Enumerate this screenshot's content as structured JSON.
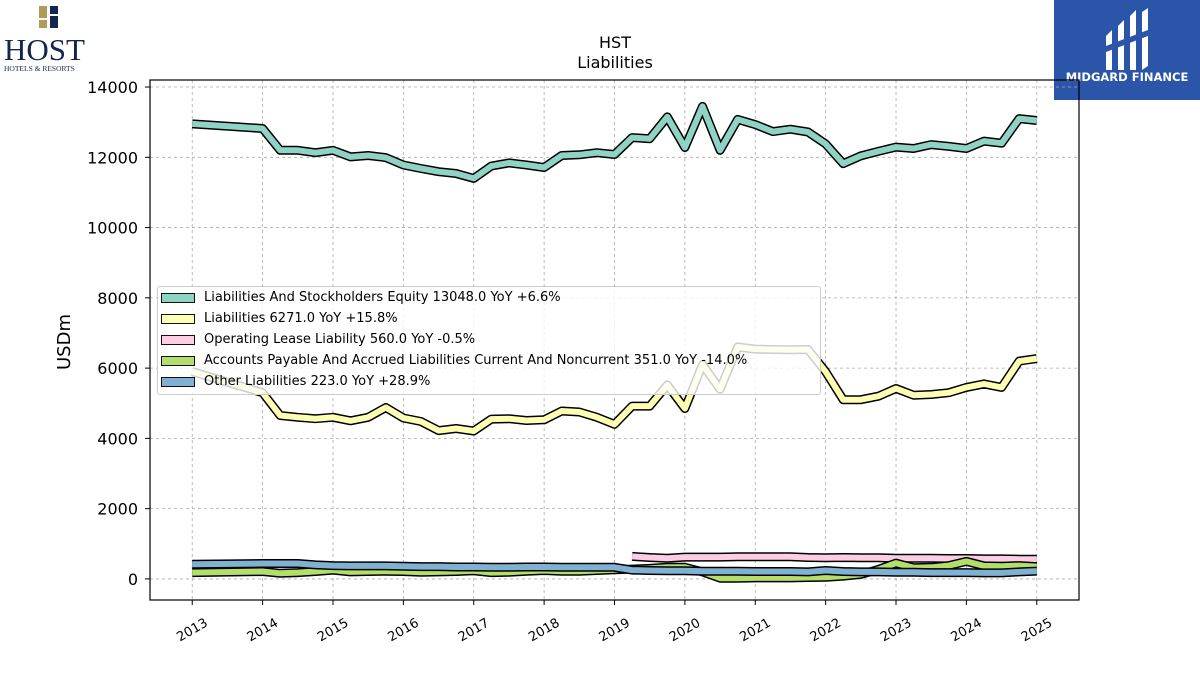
{
  "header": {
    "company_logo": {
      "wordmark": "HOST",
      "tagline": "HOTELS & RESORTS"
    },
    "brand_logo": {
      "text": "MIDGARD FINANCE"
    }
  },
  "chart_data": {
    "type": "area",
    "title": "HST",
    "subtitle": "Liabilities",
    "ylabel": "USDm",
    "xlabel": "",
    "ylim": [
      -600,
      14200
    ],
    "xlim": [
      2012.4,
      2025.6
    ],
    "yticks": [
      0,
      2000,
      4000,
      6000,
      8000,
      10000,
      12000,
      14000
    ],
    "xticks": [
      2013,
      2014,
      2015,
      2016,
      2017,
      2018,
      2019,
      2020,
      2021,
      2022,
      2023,
      2024,
      2025
    ],
    "grid": true,
    "legend_position": "center-left",
    "series": [
      {
        "name": "Liabilities And Stockholders Equity",
        "legend_label": "Liabilities And Stockholders Equity  13048.0 YoY +6.6%",
        "color": "#8fd3c4",
        "points": [
          [
            2013.0,
            12950
          ],
          [
            2014.0,
            12820
          ],
          [
            2014.25,
            12200
          ],
          [
            2014.5,
            12200
          ],
          [
            2014.75,
            12130
          ],
          [
            2015.0,
            12200
          ],
          [
            2015.25,
            12010
          ],
          [
            2015.5,
            12050
          ],
          [
            2015.75,
            11990
          ],
          [
            2016.0,
            11780
          ],
          [
            2016.25,
            11680
          ],
          [
            2016.5,
            11590
          ],
          [
            2016.75,
            11540
          ],
          [
            2017.0,
            11400
          ],
          [
            2017.25,
            11750
          ],
          [
            2017.5,
            11840
          ],
          [
            2017.75,
            11780
          ],
          [
            2018.0,
            11710
          ],
          [
            2018.25,
            12050
          ],
          [
            2018.5,
            12070
          ],
          [
            2018.75,
            12130
          ],
          [
            2019.0,
            12080
          ],
          [
            2019.25,
            12560
          ],
          [
            2019.5,
            12530
          ],
          [
            2019.75,
            13150
          ],
          [
            2020.0,
            12280
          ],
          [
            2020.25,
            13450
          ],
          [
            2020.5,
            12200
          ],
          [
            2020.75,
            13080
          ],
          [
            2021.0,
            12930
          ],
          [
            2021.25,
            12730
          ],
          [
            2021.5,
            12800
          ],
          [
            2021.75,
            12720
          ],
          [
            2022.0,
            12380
          ],
          [
            2022.25,
            11820
          ],
          [
            2022.5,
            12040
          ],
          [
            2022.75,
            12170
          ],
          [
            2023.0,
            12290
          ],
          [
            2023.25,
            12250
          ],
          [
            2023.5,
            12360
          ],
          [
            2023.75,
            12310
          ],
          [
            2024.0,
            12250
          ],
          [
            2024.25,
            12460
          ],
          [
            2024.5,
            12400
          ],
          [
            2024.75,
            13100
          ],
          [
            2025.0,
            13048
          ]
        ]
      },
      {
        "name": "Liabilities",
        "legend_label": "Liabilities  6271.0 YoY +15.8%",
        "color": "#ffffb3",
        "points": [
          [
            2013.0,
            5900
          ],
          [
            2014.0,
            5300
          ],
          [
            2014.25,
            4650
          ],
          [
            2014.5,
            4600
          ],
          [
            2014.75,
            4560
          ],
          [
            2015.0,
            4600
          ],
          [
            2015.25,
            4500
          ],
          [
            2015.5,
            4600
          ],
          [
            2015.75,
            4880
          ],
          [
            2016.0,
            4580
          ],
          [
            2016.25,
            4480
          ],
          [
            2016.5,
            4220
          ],
          [
            2016.75,
            4280
          ],
          [
            2017.0,
            4210
          ],
          [
            2017.25,
            4550
          ],
          [
            2017.5,
            4560
          ],
          [
            2017.75,
            4510
          ],
          [
            2018.0,
            4530
          ],
          [
            2018.25,
            4780
          ],
          [
            2018.5,
            4750
          ],
          [
            2018.75,
            4600
          ],
          [
            2019.0,
            4400
          ],
          [
            2019.25,
            4920
          ],
          [
            2019.5,
            4920
          ],
          [
            2019.75,
            5520
          ],
          [
            2020.0,
            4850
          ],
          [
            2020.25,
            6100
          ],
          [
            2020.5,
            5400
          ],
          [
            2020.75,
            6600
          ],
          [
            2021.0,
            6540
          ],
          [
            2021.25,
            6530
          ],
          [
            2021.5,
            6520
          ],
          [
            2021.75,
            6530
          ],
          [
            2022.0,
            5900
          ],
          [
            2022.25,
            5100
          ],
          [
            2022.5,
            5100
          ],
          [
            2022.75,
            5200
          ],
          [
            2023.0,
            5420
          ],
          [
            2023.25,
            5230
          ],
          [
            2023.5,
            5250
          ],
          [
            2023.75,
            5300
          ],
          [
            2024.0,
            5450
          ],
          [
            2024.25,
            5550
          ],
          [
            2024.5,
            5450
          ],
          [
            2024.75,
            6200
          ],
          [
            2025.0,
            6271
          ]
        ]
      },
      {
        "name": "Operating Lease Liability",
        "legend_label": "Operating Lease Liability  560.0 YoY -0.5%",
        "color": "#fccde5",
        "points": [
          [
            2019.25,
            640
          ],
          [
            2019.5,
            610
          ],
          [
            2019.75,
            590
          ],
          [
            2020.0,
            620
          ],
          [
            2020.25,
            620
          ],
          [
            2020.5,
            620
          ],
          [
            2020.75,
            630
          ],
          [
            2021.0,
            630
          ],
          [
            2021.25,
            630
          ],
          [
            2021.5,
            630
          ],
          [
            2021.75,
            610
          ],
          [
            2022.0,
            600
          ],
          [
            2022.25,
            610
          ],
          [
            2022.5,
            600
          ],
          [
            2022.75,
            600
          ],
          [
            2023.0,
            590
          ],
          [
            2023.25,
            590
          ],
          [
            2023.5,
            590
          ],
          [
            2023.75,
            580
          ],
          [
            2024.0,
            580
          ],
          [
            2024.25,
            570
          ],
          [
            2024.5,
            570
          ],
          [
            2024.75,
            560
          ],
          [
            2025.0,
            560
          ]
        ]
      },
      {
        "name": "Accounts Payable And Accrued Liabilities Current And Noncurrent",
        "legend_label": "Accounts Payable And Accrued Liabilities Current And Noncurrent  351.0 YoY -14.0%",
        "color": "#b3de69",
        "points": [
          [
            2013.0,
            180
          ],
          [
            2014.0,
            210
          ],
          [
            2014.25,
            160
          ],
          [
            2014.5,
            180
          ],
          [
            2014.75,
            210
          ],
          [
            2015.0,
            250
          ],
          [
            2015.25,
            200
          ],
          [
            2015.5,
            210
          ],
          [
            2015.75,
            220
          ],
          [
            2016.0,
            210
          ],
          [
            2016.25,
            190
          ],
          [
            2016.5,
            200
          ],
          [
            2016.75,
            210
          ],
          [
            2017.0,
            230
          ],
          [
            2017.25,
            180
          ],
          [
            2017.5,
            190
          ],
          [
            2017.75,
            220
          ],
          [
            2018.0,
            240
          ],
          [
            2018.25,
            220
          ],
          [
            2018.5,
            220
          ],
          [
            2018.75,
            240
          ],
          [
            2019.0,
            260
          ],
          [
            2019.25,
            280
          ],
          [
            2019.5,
            300
          ],
          [
            2019.75,
            330
          ],
          [
            2020.0,
            330
          ],
          [
            2020.25,
            200
          ],
          [
            2020.5,
            20
          ],
          [
            2020.75,
            20
          ],
          [
            2021.0,
            30
          ],
          [
            2021.25,
            30
          ],
          [
            2021.5,
            30
          ],
          [
            2021.75,
            40
          ],
          [
            2022.0,
            50
          ],
          [
            2022.25,
            80
          ],
          [
            2022.5,
            130
          ],
          [
            2022.75,
            270
          ],
          [
            2023.0,
            450
          ],
          [
            2023.25,
            320
          ],
          [
            2023.5,
            330
          ],
          [
            2023.75,
            380
          ],
          [
            2024.0,
            500
          ],
          [
            2024.25,
            370
          ],
          [
            2024.5,
            360
          ],
          [
            2024.75,
            380
          ],
          [
            2025.0,
            351
          ]
        ]
      },
      {
        "name": "Other Liabilities",
        "legend_label": "Other Liabilities  223.0 YoY +28.9%",
        "color": "#80b1d3",
        "points": [
          [
            2013.0,
            420
          ],
          [
            2014.0,
            440
          ],
          [
            2014.25,
            440
          ],
          [
            2014.5,
            440
          ],
          [
            2014.75,
            400
          ],
          [
            2015.0,
            380
          ],
          [
            2015.25,
            370
          ],
          [
            2015.5,
            370
          ],
          [
            2015.75,
            370
          ],
          [
            2016.0,
            360
          ],
          [
            2016.25,
            350
          ],
          [
            2016.5,
            350
          ],
          [
            2016.75,
            340
          ],
          [
            2017.0,
            340
          ],
          [
            2017.25,
            330
          ],
          [
            2017.5,
            330
          ],
          [
            2017.75,
            340
          ],
          [
            2018.0,
            340
          ],
          [
            2018.25,
            330
          ],
          [
            2018.5,
            330
          ],
          [
            2018.75,
            330
          ],
          [
            2019.0,
            330
          ],
          [
            2019.25,
            250
          ],
          [
            2019.5,
            240
          ],
          [
            2019.75,
            230
          ],
          [
            2020.0,
            230
          ],
          [
            2020.25,
            220
          ],
          [
            2020.5,
            220
          ],
          [
            2020.75,
            220
          ],
          [
            2021.0,
            210
          ],
          [
            2021.25,
            210
          ],
          [
            2021.5,
            210
          ],
          [
            2021.75,
            200
          ],
          [
            2022.0,
            240
          ],
          [
            2022.25,
            210
          ],
          [
            2022.5,
            200
          ],
          [
            2022.75,
            200
          ],
          [
            2023.0,
            190
          ],
          [
            2023.25,
            190
          ],
          [
            2023.5,
            180
          ],
          [
            2023.75,
            180
          ],
          [
            2024.0,
            180
          ],
          [
            2024.25,
            170
          ],
          [
            2024.5,
            170
          ],
          [
            2024.75,
            200
          ],
          [
            2025.0,
            223
          ]
        ]
      }
    ]
  }
}
